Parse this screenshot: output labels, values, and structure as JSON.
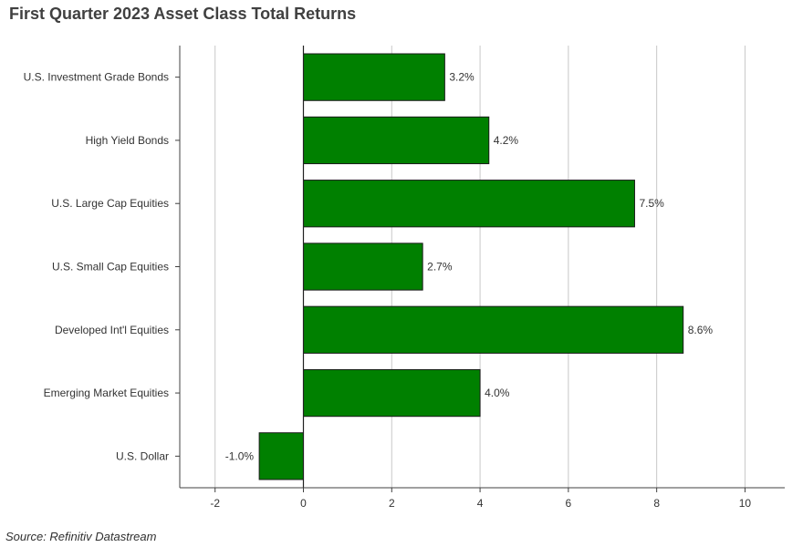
{
  "chart_data": {
    "type": "bar",
    "orientation": "horizontal",
    "title": "First Quarter 2023 Asset Class Total Returns",
    "source": "Source: Refinitiv Datastream",
    "categories": [
      "U.S. Investment Grade Bonds",
      "High Yield Bonds",
      "U.S. Large Cap Equities",
      "U.S. Small Cap Equities",
      "Developed Int'l Equities",
      "Emerging Market Equities",
      "U.S. Dollar"
    ],
    "values": [
      3.2,
      4.2,
      7.5,
      2.7,
      8.6,
      4.0,
      -1.0
    ],
    "value_labels": [
      "3.2%",
      "4.2%",
      "7.5%",
      "2.7%",
      "8.6%",
      "4.0%",
      "-1.0%"
    ],
    "xlim": [
      -2.8,
      10.9
    ],
    "xticks": [
      -2,
      0,
      2,
      4,
      6,
      8,
      10
    ],
    "xtick_labels": [
      "-2",
      "0",
      "2",
      "4",
      "6",
      "8",
      "10"
    ],
    "xlabel": "",
    "ylabel": "",
    "grid": true,
    "legend": "none",
    "colors": {
      "bar_fill": "#008000",
      "bar_stroke": "#1a1a1a",
      "grid": "#c8c8c8",
      "axis": "#404040",
      "text": "#333333"
    }
  }
}
